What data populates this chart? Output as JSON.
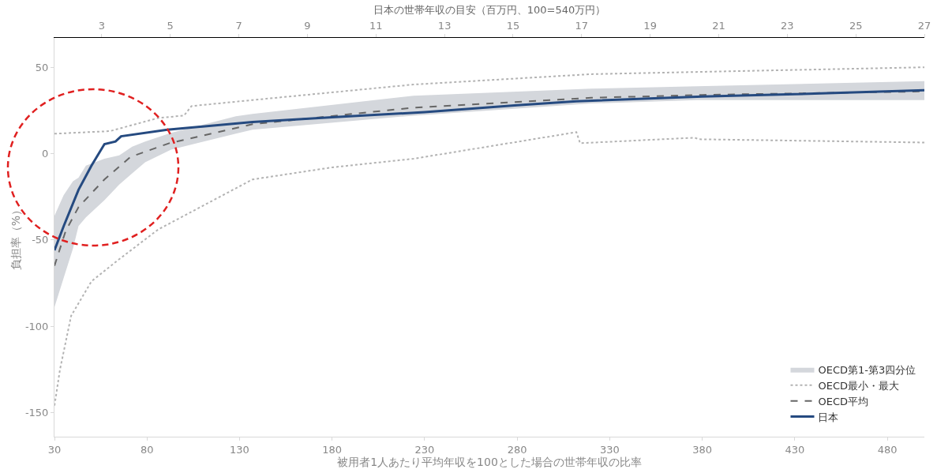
{
  "chart_data": {
    "type": "line",
    "xlabel": "被用者1人あたり平均年収を100とした場合の世帯年収の比率",
    "ylabel": "負担率（%）",
    "x2label": "日本の世帯年収の目安（百万円、100=540万円）",
    "xlim": [
      30,
      500
    ],
    "xticks": [
      30,
      80,
      130,
      180,
      230,
      280,
      330,
      380,
      430,
      480
    ],
    "x2lim": [
      1.62,
      27
    ],
    "x2ticks": [
      3,
      5,
      7,
      9,
      11,
      13,
      15,
      17,
      19,
      21,
      23,
      25,
      27
    ],
    "ylim": [
      -164,
      67
    ],
    "yticks": [
      -150,
      -100,
      -50,
      0,
      50
    ],
    "grid": false,
    "legend": "bottom right",
    "marker": "none",
    "series": [
      {
        "name": "OECD第1-第3四分位",
        "color": "#d4d7dc",
        "x": [
          30,
          35,
          40,
          43,
          47,
          57,
          65,
          72,
          79,
          93,
          128,
          137,
          224,
          320,
          377,
          500
        ],
        "values": [
          null,
          null,
          null,
          null,
          null,
          null,
          null,
          null,
          null,
          null,
          null,
          null,
          null,
          null,
          null,
          null
        ],
        "lower": [
          -89,
          -72,
          -55,
          -42,
          -37,
          -27,
          -18,
          -11.5,
          -5,
          2.3,
          11.5,
          13.8,
          22,
          29,
          31,
          31
        ],
        "upper": [
          -36,
          -24,
          -16,
          -14,
          -7,
          -3,
          -1,
          4,
          7,
          12,
          21.6,
          23,
          33.5,
          37.6,
          39,
          42
        ]
      },
      {
        "name": "OECD最小・最大",
        "color": "#b3b3b3",
        "line_style": "dotted",
        "x": [
          30,
          60,
          86,
          100,
          104,
          137,
          224,
          320,
          500
        ],
        "values": [
          11.5,
          13,
          20.6,
          22,
          27.5,
          31,
          40,
          46,
          50
        ]
      },
      {
        "color": "#b3b3b3",
        "line_style": "dotted",
        "x": [
          30,
          33,
          39,
          50,
          64,
          86,
          137,
          180,
          224,
          312,
          314,
          376,
          378,
          500
        ],
        "values": [
          -146,
          -125,
          -94,
          -74,
          -62,
          -44,
          -15,
          -8,
          -3,
          12.4,
          6,
          9.2,
          8.3,
          6.4
        ]
      },
      {
        "name": "OECD平均",
        "color": "#666666",
        "line_style": "dashed",
        "x": [
          30,
          36,
          43,
          57,
          71,
          92,
          137,
          224,
          320,
          380,
          500
        ],
        "values": [
          -65,
          -45,
          -31,
          -15,
          -2,
          6,
          17,
          26.6,
          32.3,
          34,
          36
        ]
      },
      {
        "name": "日本",
        "color": "#254a80",
        "line_style": "solid",
        "x": [
          30,
          35,
          43,
          50,
          57,
          63,
          66,
          91,
          137,
          180,
          230,
          280,
          312,
          380,
          430,
          500
        ],
        "values": [
          -56,
          -42,
          -21,
          -7,
          5.5,
          7,
          10,
          13.8,
          18.3,
          21,
          24,
          28,
          30.3,
          33,
          34.4,
          36.7
        ]
      }
    ]
  }
}
